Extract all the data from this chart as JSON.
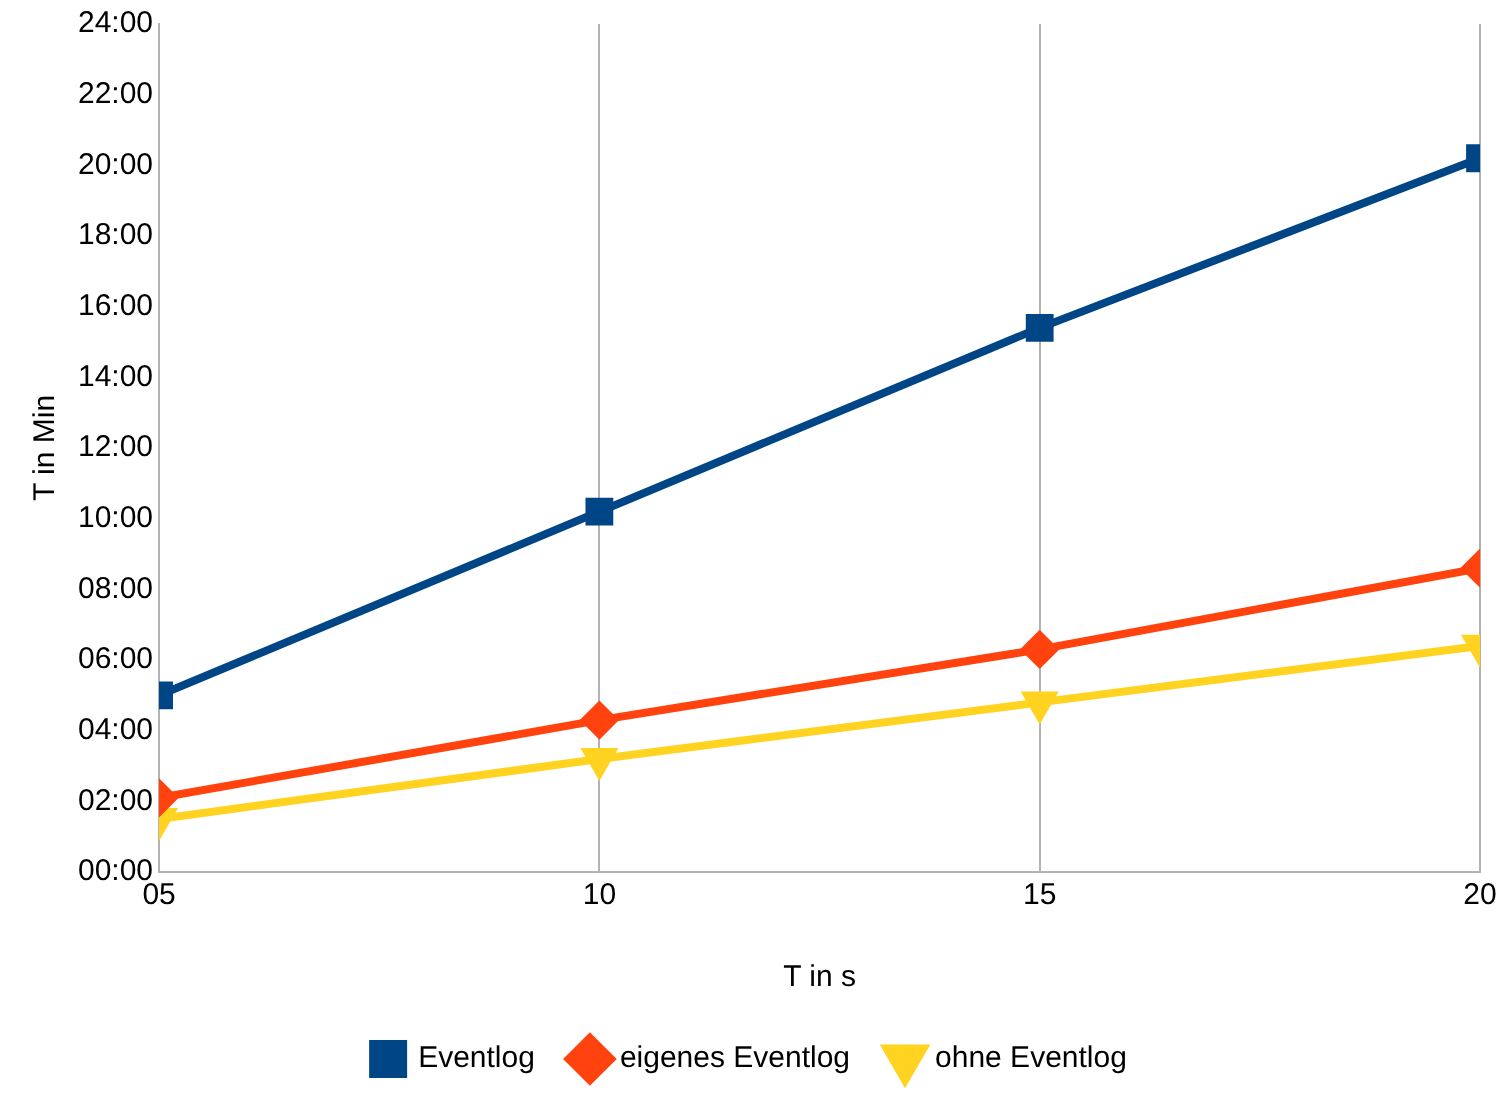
{
  "chart_data": {
    "type": "line",
    "xlabel": "T in s",
    "ylabel": "T in Min",
    "x": [
      5,
      10,
      15,
      20
    ],
    "series": [
      {
        "name": "Eventlog",
        "color": "#004586",
        "marker": "square",
        "values": [
          5.0,
          10.2,
          15.4,
          20.2
        ]
      },
      {
        "name": "eigenes Eventlog",
        "color": "#ff420e",
        "marker": "diamond",
        "values": [
          2.1,
          4.3,
          6.3,
          8.6
        ]
      },
      {
        "name": "ohne Eventlog",
        "color": "#ffd320",
        "marker": "triangle",
        "values": [
          1.5,
          3.2,
          4.8,
          6.4
        ]
      }
    ],
    "xlim": [
      5,
      20
    ],
    "xticks": [
      {
        "value": 5,
        "label": "05"
      },
      {
        "value": 10,
        "label": "10"
      },
      {
        "value": 15,
        "label": "15"
      },
      {
        "value": 20,
        "label": "20"
      }
    ],
    "ylim": [
      0,
      24
    ],
    "yticks": [
      {
        "value": 0,
        "label": "00:00"
      },
      {
        "value": 2,
        "label": "02:00"
      },
      {
        "value": 4,
        "label": "04:00"
      },
      {
        "value": 6,
        "label": "06:00"
      },
      {
        "value": 8,
        "label": "08:00"
      },
      {
        "value": 10,
        "label": "10:00"
      },
      {
        "value": 12,
        "label": "12:00"
      },
      {
        "value": 14,
        "label": "14:00"
      },
      {
        "value": 16,
        "label": "16:00"
      },
      {
        "value": 18,
        "label": "18:00"
      },
      {
        "value": 20,
        "label": "20:00"
      },
      {
        "value": 22,
        "label": "22:00"
      },
      {
        "value": 24,
        "label": "24:00"
      }
    ],
    "grid": "x",
    "legend": "bottom"
  }
}
